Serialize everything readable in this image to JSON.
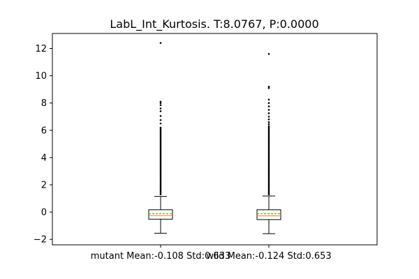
{
  "chart_data": {
    "type": "box",
    "title": "LabL_Int_Kurtosis. T:8.0767, P:0.0000",
    "xlabel": "",
    "ylabel": "",
    "ylim": [
      -2.4,
      13.1
    ],
    "yticks": [
      -2,
      0,
      2,
      4,
      6,
      8,
      10,
      12
    ],
    "ytick_labels": [
      "−2",
      "0",
      "2",
      "4",
      "6",
      "8",
      "10",
      "12"
    ],
    "categories": [
      "mutant Mean:-0.108 Std:0.633",
      "wild Mean:-0.124 Std:0.653"
    ],
    "boxes": [
      {
        "whisker_low": -1.55,
        "q1": -0.52,
        "median": -0.25,
        "mean": -0.108,
        "q3": 0.17,
        "whisker_high": 1.15,
        "outliers": [
          1.3,
          1.4,
          1.5,
          1.6,
          1.7,
          1.8,
          1.9,
          2.0,
          2.1,
          2.2,
          2.3,
          2.4,
          2.5,
          2.6,
          2.7,
          2.8,
          2.9,
          3.0,
          3.1,
          3.2,
          3.3,
          3.4,
          3.5,
          3.6,
          3.7,
          3.8,
          3.9,
          4.0,
          4.1,
          4.2,
          4.3,
          4.4,
          4.5,
          4.6,
          4.7,
          4.8,
          4.9,
          5.0,
          5.1,
          5.2,
          5.3,
          5.4,
          5.5,
          5.6,
          5.7,
          5.8,
          5.9,
          6.0,
          6.1,
          6.2,
          6.5,
          6.75,
          7.05,
          7.4,
          7.6,
          7.85,
          8.0,
          8.1,
          12.4
        ]
      },
      {
        "whisker_low": -1.58,
        "q1": -0.55,
        "median": -0.28,
        "mean": -0.124,
        "q3": 0.17,
        "whisker_high": 1.18,
        "outliers": [
          1.3,
          1.4,
          1.5,
          1.6,
          1.7,
          1.8,
          1.9,
          2.0,
          2.1,
          2.2,
          2.3,
          2.4,
          2.5,
          2.6,
          2.7,
          2.8,
          2.9,
          3.0,
          3.1,
          3.2,
          3.3,
          3.4,
          3.5,
          3.6,
          3.7,
          3.8,
          3.9,
          4.0,
          4.1,
          4.2,
          4.3,
          4.4,
          4.5,
          4.6,
          4.7,
          4.8,
          4.9,
          5.0,
          5.1,
          5.2,
          5.3,
          5.4,
          5.5,
          5.6,
          5.7,
          5.8,
          5.9,
          6.0,
          6.1,
          6.2,
          6.3,
          6.45,
          6.6,
          6.8,
          7.0,
          7.25,
          7.5,
          7.75,
          8.0,
          8.25,
          9.1,
          9.2,
          11.6
        ]
      }
    ],
    "colors": {
      "box": "#000000",
      "median": "#ff7f0e",
      "mean": "#2ca02c",
      "outlier": "#000000"
    }
  }
}
